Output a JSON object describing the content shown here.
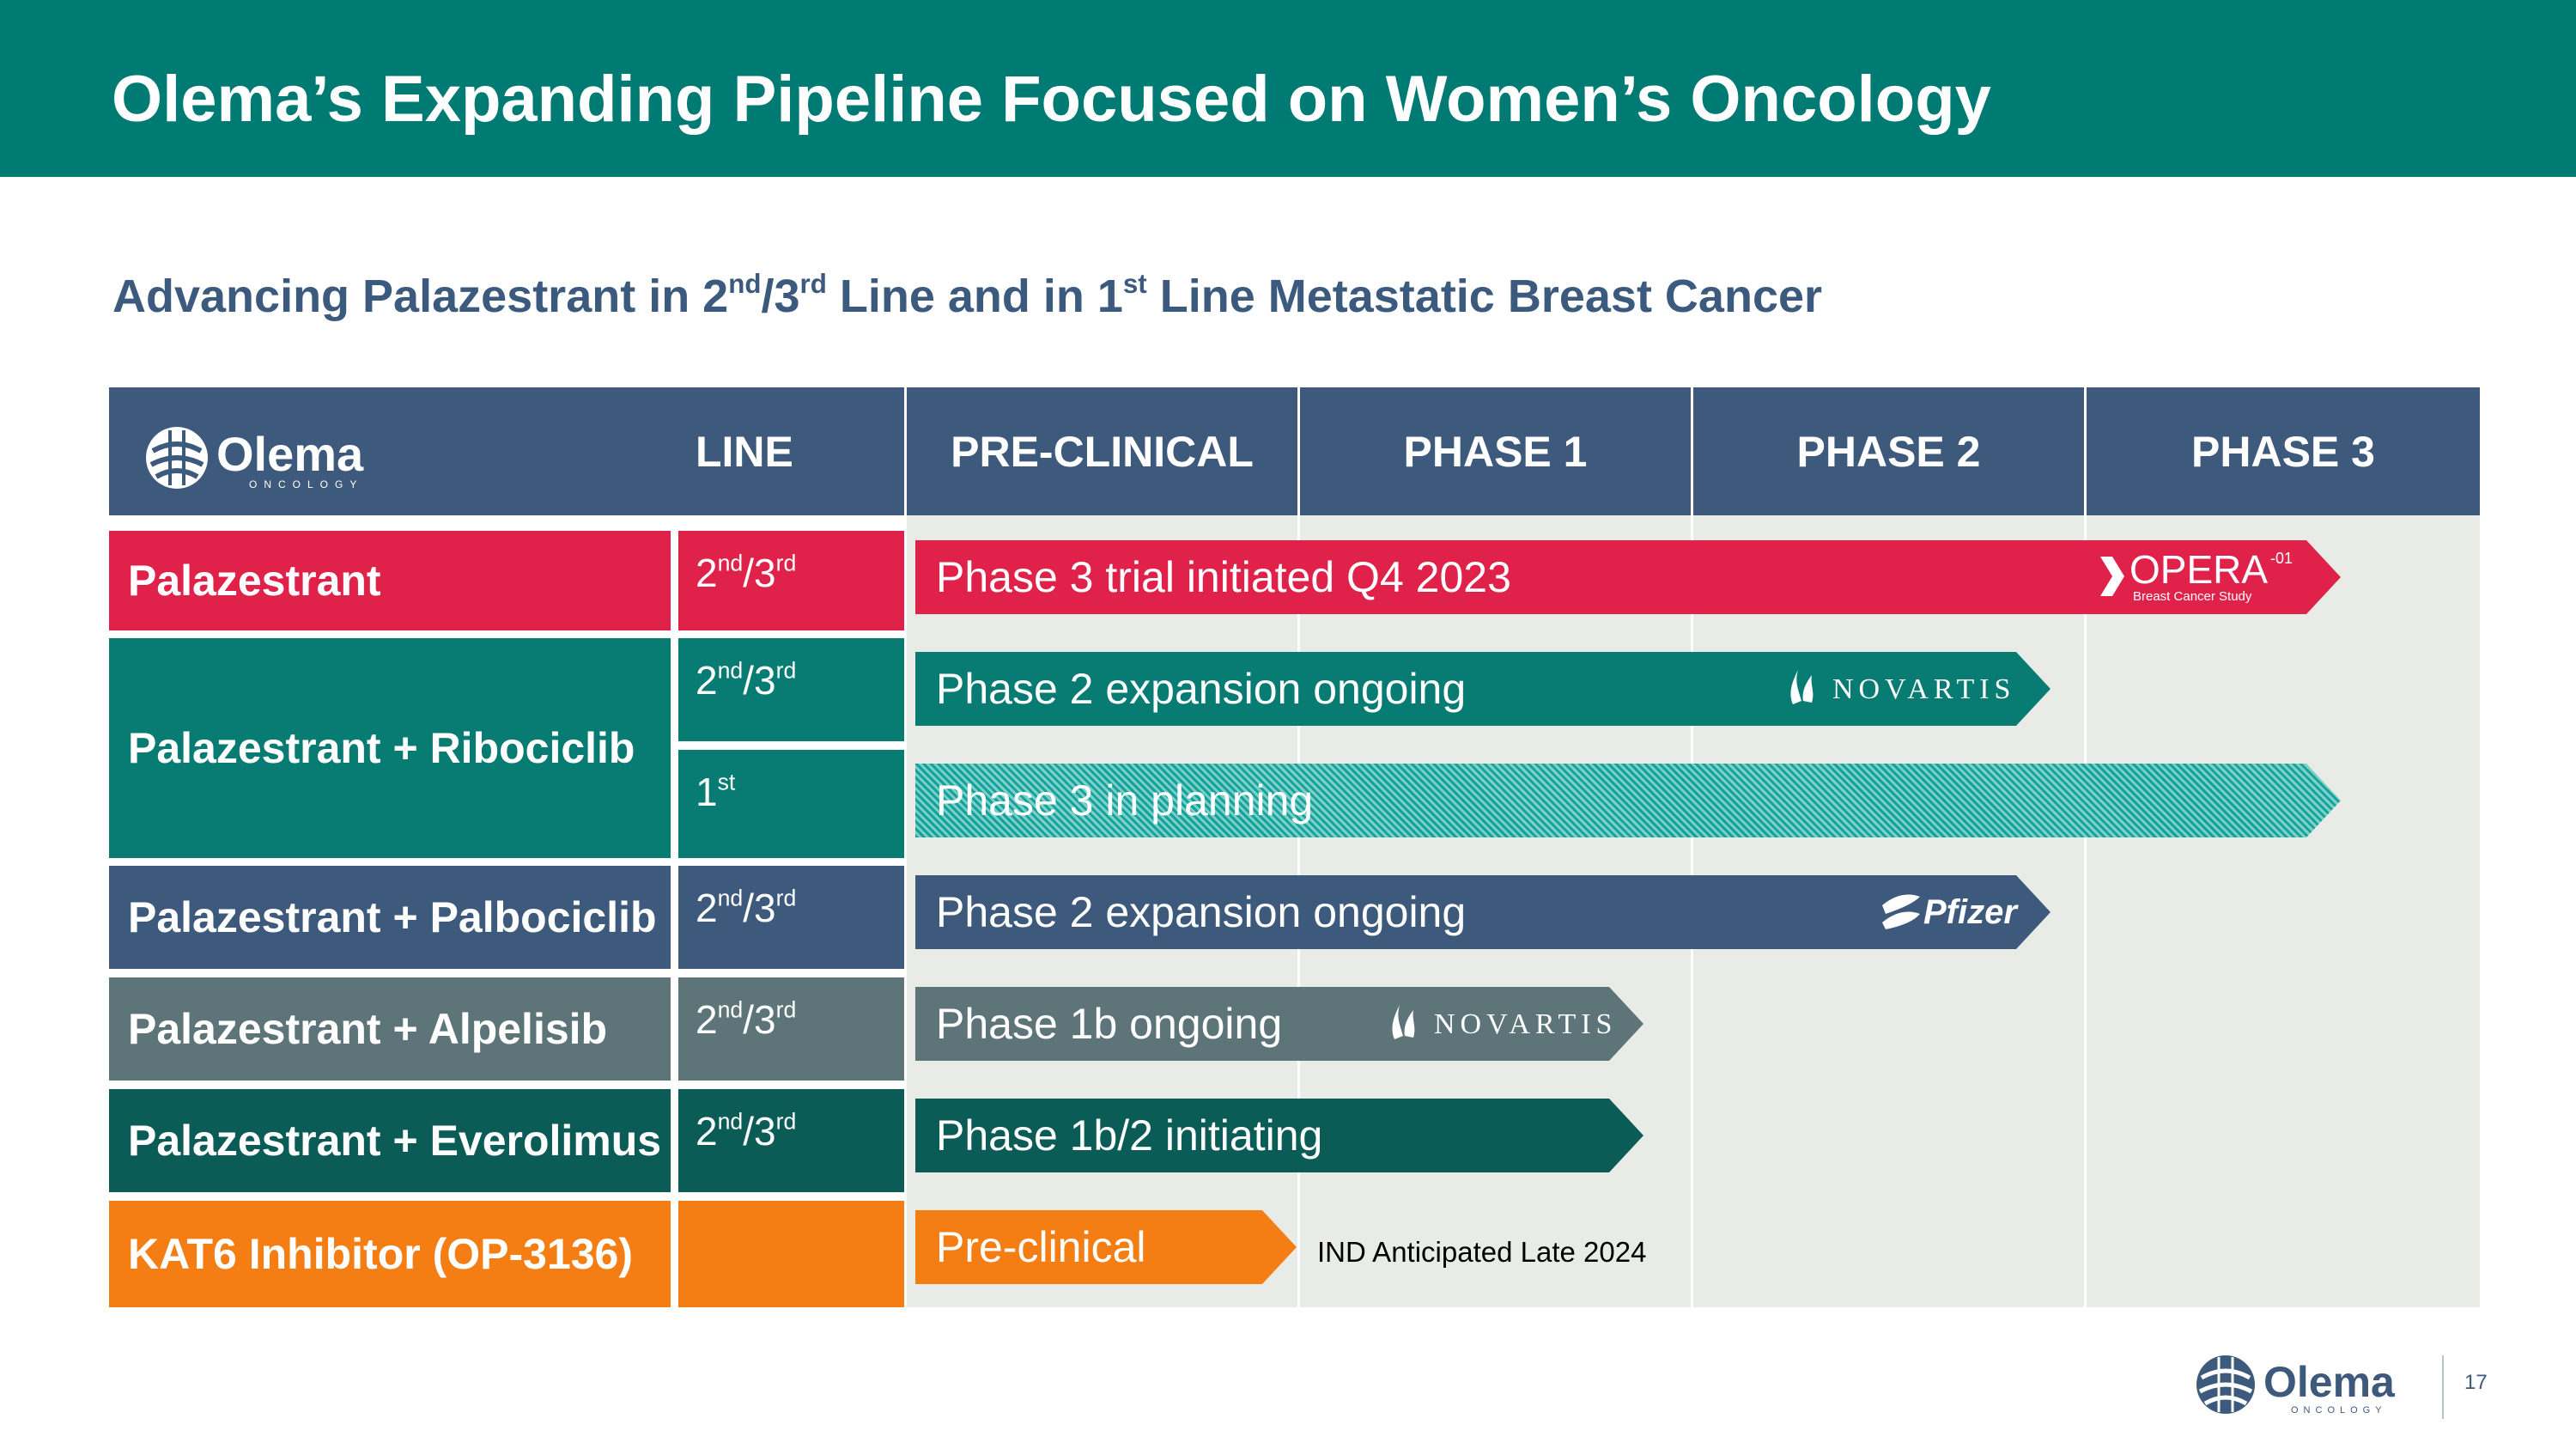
{
  "title": "Olema’s Expanding Pipeline Focused on Women’s Oncology",
  "subtitle": {
    "p1": "Advancing Palazestrant in 2",
    "s1": "nd",
    "p2": "/3",
    "s2": "rd",
    "p3": " Line and in 1",
    "s3": "st",
    "p4": " Line Metastatic Breast Cancer"
  },
  "logo": {
    "name": "Olema",
    "tag": "ONCOLOGY"
  },
  "headers": {
    "line": "LINE",
    "preclinical": "PRE-CLINICAL",
    "phase1": "PHASE 1",
    "phase2": "PHASE 2",
    "phase3": "PHASE 3"
  },
  "drugs": [
    {
      "name": "Palazestrant",
      "color": "#e0224b"
    },
    {
      "name": "Palazestrant + Ribociclib",
      "color": "#087c73"
    },
    {
      "name": "Palazestrant + Palbociclib",
      "color": "#3d5a7c"
    },
    {
      "name": "Palazestrant + Alpelisib",
      "color": "#5d7479"
    },
    {
      "name": "Palazestrant + Everolimus",
      "color": "#0b5c57"
    },
    {
      "name": "KAT6 Inhibitor (OP-3136)",
      "color": "#f57e14"
    }
  ],
  "lines": {
    "l0": {
      "n": "2",
      "s1": "nd",
      "m": "/3",
      "s2": "rd"
    },
    "l1": {
      "n": "2",
      "s1": "nd",
      "m": "/3",
      "s2": "rd"
    },
    "l2": {
      "n": "1",
      "s1": "st"
    },
    "l3": {
      "n": "2",
      "s1": "nd",
      "m": "/3",
      "s2": "rd"
    },
    "l4": {
      "n": "2",
      "s1": "nd",
      "m": "/3",
      "s2": "rd"
    },
    "l5": {
      "n": "2",
      "s1": "nd",
      "m": "/3",
      "s2": "rd"
    }
  },
  "bars": [
    {
      "label": "Phase 3 trial initiated Q4 2023",
      "progress_phase": 3,
      "partner": "OPERA-01 Breast Cancer Study"
    },
    {
      "label": "Phase 2 expansion ongoing",
      "progress_phase": 2,
      "partner": "NOVARTIS"
    },
    {
      "label": "Phase 3 in planning",
      "progress_phase": 3,
      "partner": ""
    },
    {
      "label": "Phase 2 expansion ongoing",
      "progress_phase": 2,
      "partner": "Pfizer"
    },
    {
      "label": "Phase 1b ongoing",
      "progress_phase": 1,
      "partner": "NOVARTIS"
    },
    {
      "label": "Phase 1b/2 initiating",
      "progress_phase": 1,
      "partner": ""
    },
    {
      "label": "Pre-clinical",
      "progress_phase": 0,
      "partner": ""
    }
  ],
  "opera": {
    "word": "OPERA",
    "sup": "-01",
    "sub": "Breast Cancer Study"
  },
  "novartis": "NOVARTIS",
  "pfizer": "Pfizer",
  "ind_note": "IND Anticipated Late 2024",
  "page_number": "17",
  "colors": {
    "teal": "#007b73",
    "navy": "#3d5a7c",
    "red": "#e0224b",
    "orange": "#f57e14"
  }
}
